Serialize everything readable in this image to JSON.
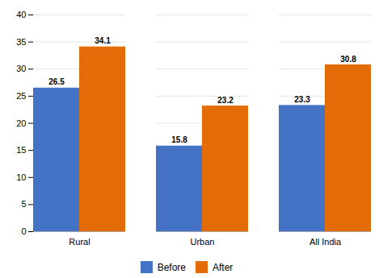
{
  "chart_data": {
    "type": "bar",
    "categories": [
      "Rural",
      "Urban",
      "All India"
    ],
    "series": [
      {
        "name": "Before",
        "color": "#4472c4",
        "values": [
          26.5,
          15.8,
          23.3
        ]
      },
      {
        "name": "After",
        "color": "#e36c09",
        "values": [
          34.1,
          23.2,
          30.8
        ]
      }
    ],
    "ylim": [
      0,
      40
    ],
    "yticks": [
      0,
      5,
      10,
      15,
      20,
      25,
      30,
      35,
      40
    ],
    "grid": true,
    "data_labels": true,
    "legend": "bottom"
  }
}
